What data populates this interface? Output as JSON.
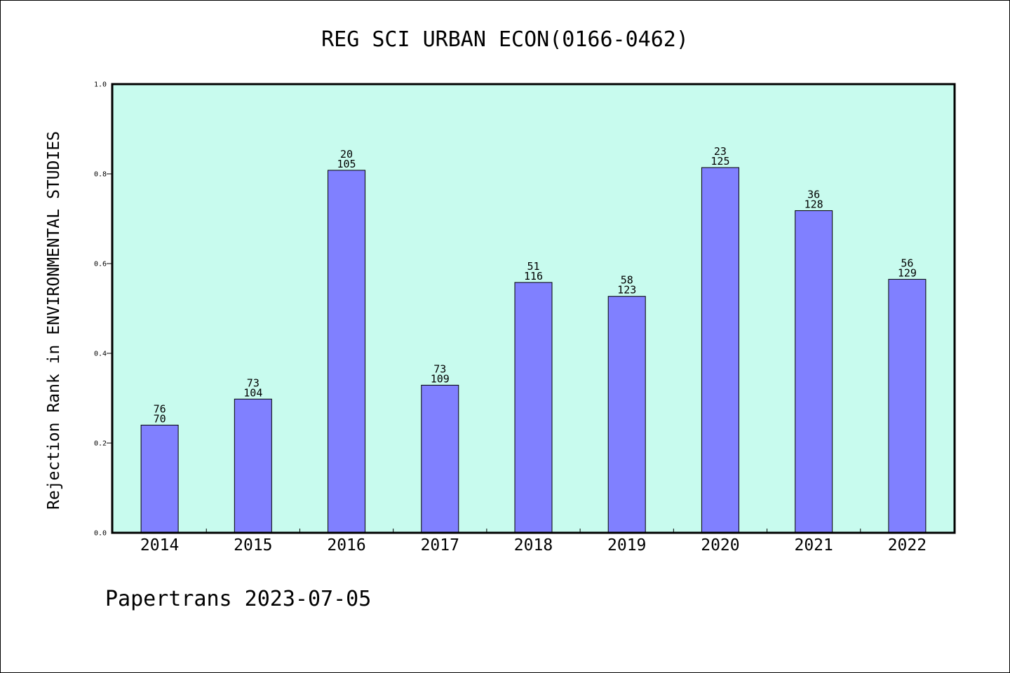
{
  "chart_data": {
    "type": "bar",
    "title": "REG SCI URBAN ECON(0166-0462)",
    "ylabel": "Rejection Rank in ENVIRONMENTAL STUDIES",
    "xlabel": "",
    "categories": [
      "2014",
      "2015",
      "2016",
      "2017",
      "2018",
      "2019",
      "2020",
      "2021",
      "2022"
    ],
    "values": [
      0.24,
      0.298,
      0.808,
      0.329,
      0.558,
      0.527,
      0.814,
      0.718,
      0.565
    ],
    "label_top": [
      "76",
      "73",
      "20",
      "73",
      "51",
      "58",
      "23",
      "36",
      "56"
    ],
    "label_bottom": [
      "70",
      "104",
      "105",
      "109",
      "116",
      "123",
      "125",
      "128",
      "129"
    ],
    "ylim": [
      0.0,
      1.0
    ],
    "yticks": [
      "0.0",
      "0.2",
      "0.4",
      "0.6",
      "0.8",
      "1.0"
    ],
    "grid": false,
    "colors": {
      "plot_background": "#c8fbee",
      "bar_fill": "#8080ff",
      "bar_stroke": "#000000"
    }
  },
  "footer": {
    "text": "Papertrans 2023-07-05"
  }
}
